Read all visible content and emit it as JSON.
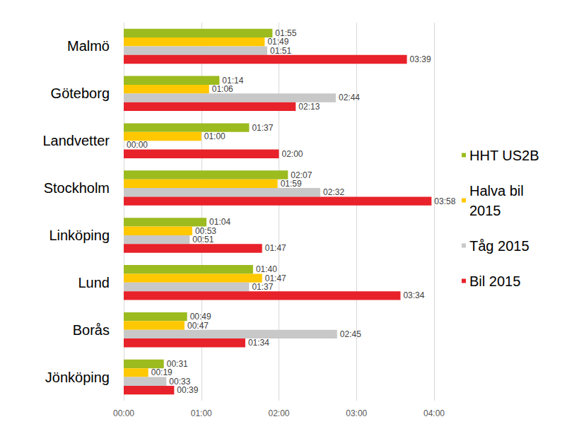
{
  "chart_data": {
    "type": "bar",
    "orientation": "horizontal",
    "categories": [
      "Malmö",
      "Göteborg",
      "Landvetter",
      "Stockholm",
      "Linköping",
      "Lund",
      "Borås",
      "Jönköping"
    ],
    "series": [
      {
        "name": "HHT US2B",
        "color": "#9bbb1f",
        "values": [
          115,
          74,
          97,
          127,
          64,
          100,
          49,
          31
        ],
        "value_labels": [
          "01:55",
          "01:14",
          "01:37",
          "02:07",
          "01:04",
          "01:40",
          "00:49",
          "00:31"
        ]
      },
      {
        "name": "Halva bil 2015",
        "color": "#ffc800",
        "values": [
          109,
          66,
          60,
          119,
          53,
          107,
          47,
          19
        ],
        "value_labels": [
          "01:49",
          "01:06",
          "01:00",
          "01:59",
          "00:53",
          "01:47",
          "00:47",
          "00:19"
        ]
      },
      {
        "name": "Tåg 2015",
        "color": "#c8c8c8",
        "values": [
          111,
          164,
          0,
          152,
          51,
          97,
          165,
          33
        ],
        "value_labels": [
          "01:51",
          "02:44",
          "00:00",
          "02:32",
          "00:51",
          "01:37",
          "02:45",
          "00:33"
        ]
      },
      {
        "name": "Bil 2015",
        "color": "#e8222a",
        "values": [
          219,
          133,
          120,
          238,
          107,
          214,
          94,
          39
        ],
        "value_labels": [
          "03:39",
          "02:13",
          "02:00",
          "03:58",
          "01:47",
          "03:34",
          "01:34",
          "00:39"
        ]
      }
    ],
    "xlim": [
      0,
      240
    ],
    "xticks": [
      {
        "value": 0,
        "label": "00:00"
      },
      {
        "value": 60,
        "label": "01:00"
      },
      {
        "value": 120,
        "label": "02:00"
      },
      {
        "value": 180,
        "label": "03:00"
      },
      {
        "value": 240,
        "label": "04:00"
      }
    ],
    "grid": true,
    "legend": "right",
    "data_labels": true
  }
}
